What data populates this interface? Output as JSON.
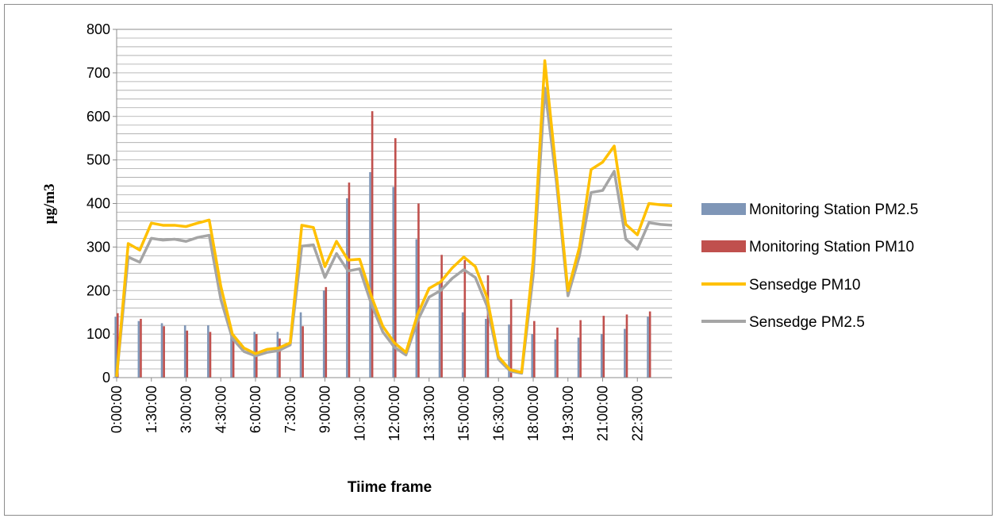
{
  "chart_data": {
    "type": "bar+line",
    "title": "",
    "xlabel": "Tiime frame",
    "ylabel": "µg/m3",
    "ylim": [
      0,
      800
    ],
    "yticks": [
      0,
      100,
      200,
      300,
      400,
      500,
      600,
      700,
      800
    ],
    "grid": true,
    "legend_position": "right",
    "tick_labels_shown": [
      "0:00:00",
      "1:30:00",
      "3:00:00",
      "4:30:00",
      "6:00:00",
      "7:30:00",
      "9:00:00",
      "10:30:00",
      "12:00:00",
      "13:30:00",
      "15:00:00",
      "16:30:00",
      "18:00:00",
      "19:30:00",
      "21:00:00",
      "22:30:00"
    ],
    "bar_series": [
      {
        "name": "Monitoring Station PM2.5",
        "color": "#7f96b7",
        "x": [
          "0:00:00",
          "1:00:00",
          "2:00:00",
          "3:00:00",
          "4:00:00",
          "5:00:00",
          "6:00:00",
          "7:00:00",
          "8:00:00",
          "9:00:00",
          "10:00:00",
          "11:00:00",
          "12:00:00",
          "13:00:00",
          "14:00:00",
          "15:00:00",
          "16:00:00",
          "17:00:00",
          "18:00:00",
          "19:00:00",
          "20:00:00",
          "21:00:00",
          "22:00:00",
          "23:00:00"
        ],
        "values": [
          140,
          130,
          125,
          120,
          120,
          95,
          105,
          105,
          150,
          200,
          412,
          472,
          438,
          318,
          220,
          150,
          135,
          122,
          100,
          88,
          92,
          100,
          112,
          140
        ]
      },
      {
        "name": "Monitoring Station PM10",
        "color": "#c0504d",
        "x": [
          "0:00:00",
          "1:00:00",
          "2:00:00",
          "3:00:00",
          "4:00:00",
          "5:00:00",
          "6:00:00",
          "7:00:00",
          "8:00:00",
          "9:00:00",
          "10:00:00",
          "11:00:00",
          "12:00:00",
          "13:00:00",
          "14:00:00",
          "15:00:00",
          "16:00:00",
          "17:00:00",
          "18:00:00",
          "19:00:00",
          "20:00:00",
          "21:00:00",
          "22:00:00",
          "23:00:00"
        ],
        "values": [
          148,
          135,
          118,
          108,
          105,
          95,
          100,
          90,
          118,
          208,
          448,
          612,
          550,
          400,
          282,
          270,
          235,
          180,
          130,
          115,
          132,
          142,
          145,
          152
        ]
      }
    ],
    "line_x": [
      "0:00:00",
      "0:30:00",
      "1:00:00",
      "1:30:00",
      "2:00:00",
      "2:30:00",
      "3:00:00",
      "3:30:00",
      "4:00:00",
      "4:30:00",
      "5:00:00",
      "5:30:00",
      "6:00:00",
      "6:30:00",
      "7:00:00",
      "7:30:00",
      "8:00:00",
      "8:30:00",
      "9:00:00",
      "9:30:00",
      "10:00:00",
      "10:30:00",
      "11:00:00",
      "11:30:00",
      "12:00:00",
      "12:30:00",
      "13:00:00",
      "13:30:00",
      "14:00:00",
      "14:30:00",
      "15:00:00",
      "15:30:00",
      "16:00:00",
      "16:30:00",
      "17:00:00",
      "17:30:00",
      "18:00:00",
      "18:30:00",
      "19:00:00",
      "19:30:00",
      "20:00:00",
      "20:30:00",
      "21:00:00",
      "21:30:00",
      "22:00:00",
      "22:30:00",
      "23:00:00",
      "23:30:00",
      "24:00:00"
    ],
    "line_series": [
      {
        "name": "Sensedge PM10",
        "color": "#ffc000",
        "values": [
          2,
          308,
          293,
          355,
          350,
          350,
          347,
          355,
          362,
          210,
          100,
          68,
          55,
          65,
          68,
          80,
          350,
          345,
          255,
          313,
          270,
          272,
          188,
          118,
          80,
          58,
          145,
          205,
          220,
          252,
          277,
          255,
          185,
          48,
          18,
          12,
          270,
          728,
          470,
          200,
          300,
          478,
          495,
          532,
          352,
          328,
          400,
          397,
          395
        ]
      },
      {
        "name": "Sensedge PM2.5",
        "color": "#a5a5a5",
        "values": [
          2,
          277,
          265,
          320,
          316,
          318,
          313,
          322,
          327,
          180,
          90,
          60,
          50,
          58,
          62,
          75,
          302,
          305,
          230,
          285,
          245,
          250,
          170,
          105,
          70,
          52,
          130,
          185,
          200,
          228,
          248,
          230,
          165,
          42,
          15,
          10,
          235,
          665,
          450,
          188,
          280,
          425,
          430,
          474,
          318,
          295,
          356,
          352,
          350
        ]
      }
    ]
  }
}
